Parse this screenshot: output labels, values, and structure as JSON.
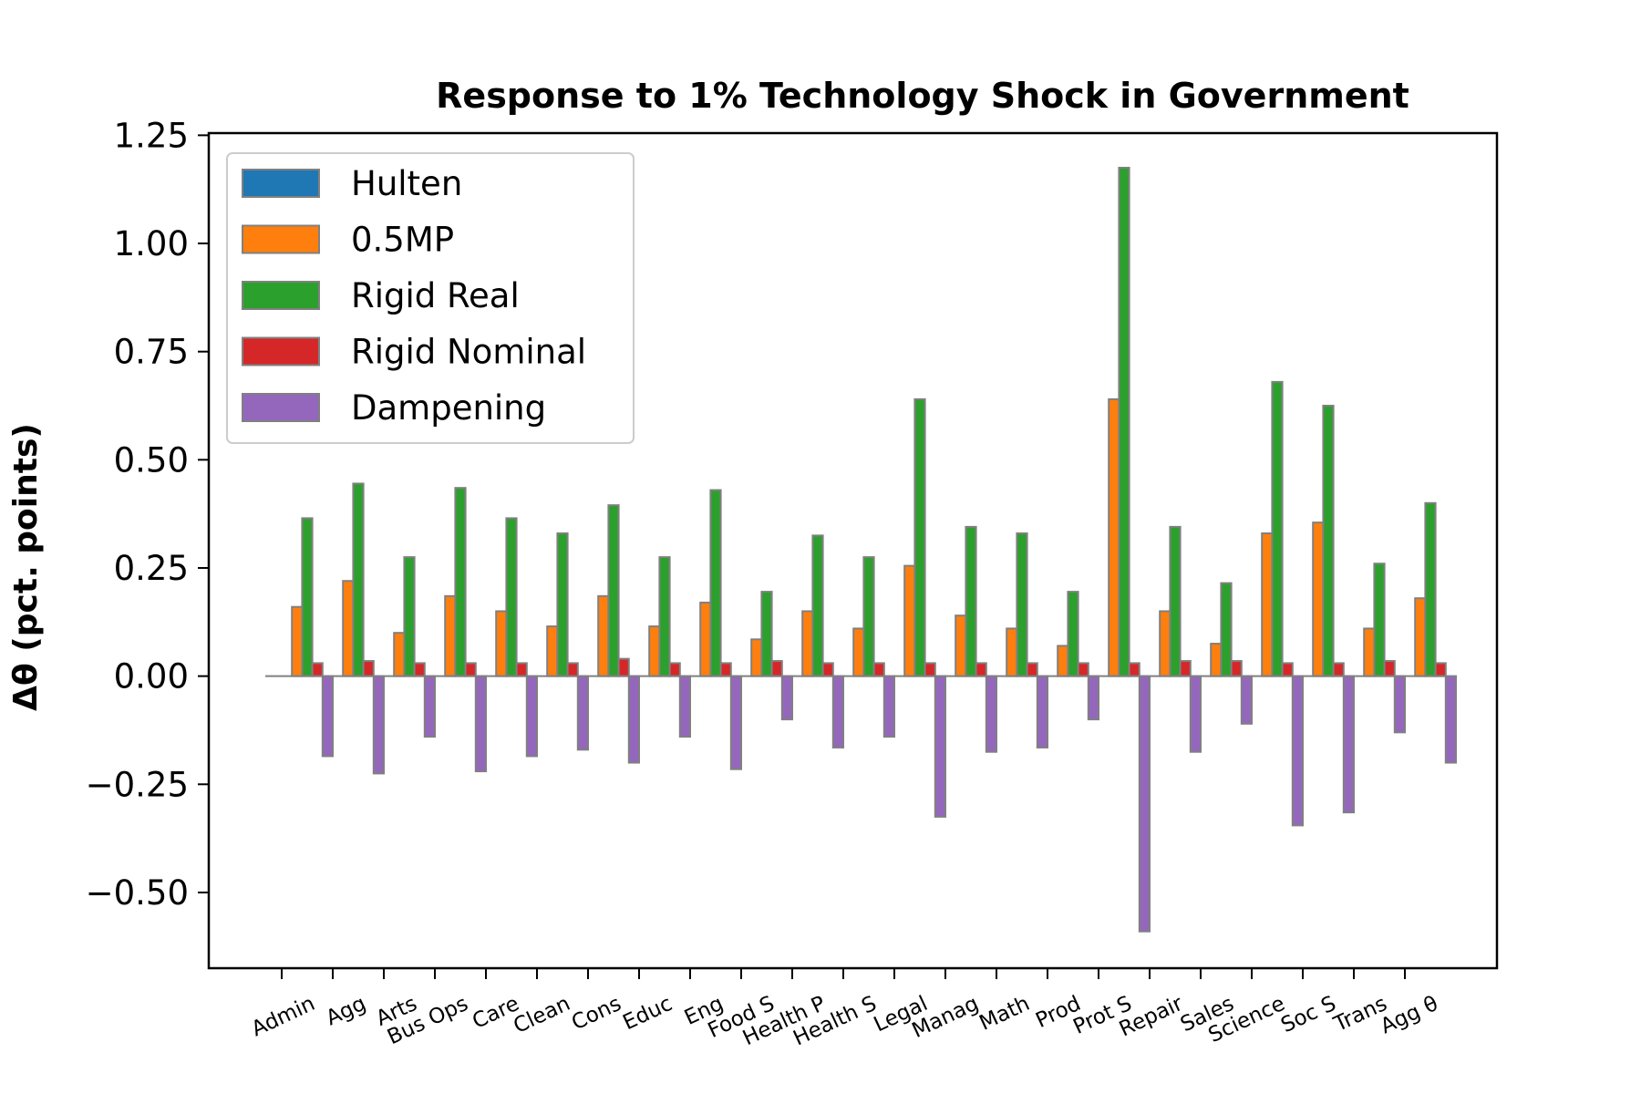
{
  "chart_data": {
    "type": "bar",
    "title": "Response to 1% Technology Shock in Government",
    "xlabel": "",
    "ylabel": "Δθ  (pct. points)",
    "ylim": [
      -0.675,
      1.255
    ],
    "yticks": [
      -0.5,
      -0.25,
      0.0,
      0.25,
      0.5,
      0.75,
      1.0,
      1.25
    ],
    "ytick_labels": [
      "−0.50",
      "−0.25",
      "0.00",
      "0.25",
      "0.50",
      "0.75",
      "1.00",
      "1.25"
    ],
    "grid": false,
    "legend_position": "top-left",
    "categories": [
      "Admin",
      "Agg",
      "Arts",
      "Bus Ops",
      "Care",
      "Clean",
      "Cons",
      "Educ",
      "Eng",
      "Food S",
      "Health P",
      "Health S",
      "Legal",
      "Manag",
      "Math",
      "Prod",
      "Prot S",
      "Repair",
      "Sales",
      "Science",
      "Soc S",
      "Trans",
      "Agg θ"
    ],
    "series": [
      {
        "name": "Hulten",
        "color": "#1f77b4",
        "values": [
          0,
          0,
          0,
          0,
          0,
          0,
          0,
          0,
          0,
          0,
          0,
          0,
          0,
          0,
          0,
          0,
          0,
          0,
          0,
          0,
          0,
          0,
          0
        ]
      },
      {
        "name": "0.5MP",
        "color": "#ff7f0e",
        "values": [
          0.16,
          0.22,
          0.1,
          0.185,
          0.15,
          0.115,
          0.185,
          0.115,
          0.17,
          0.085,
          0.15,
          0.11,
          0.255,
          0.14,
          0.11,
          0.07,
          0.64,
          0.15,
          0.075,
          0.33,
          0.355,
          0.11,
          0.18
        ]
      },
      {
        "name": "Rigid Real",
        "color": "#2ca02c",
        "values": [
          0.365,
          0.445,
          0.275,
          0.435,
          0.365,
          0.33,
          0.395,
          0.275,
          0.43,
          0.195,
          0.325,
          0.275,
          0.64,
          0.345,
          0.33,
          0.195,
          1.175,
          0.345,
          0.215,
          0.68,
          0.625,
          0.26,
          0.4
        ]
      },
      {
        "name": "Rigid Nominal",
        "color": "#d62728",
        "values": [
          0.03,
          0.035,
          0.03,
          0.03,
          0.03,
          0.03,
          0.04,
          0.03,
          0.03,
          0.035,
          0.03,
          0.03,
          0.03,
          0.03,
          0.03,
          0.03,
          0.03,
          0.035,
          0.035,
          0.03,
          0.03,
          0.035,
          0.03
        ]
      },
      {
        "name": "Dampening",
        "color": "#9467bd",
        "values": [
          -0.185,
          -0.225,
          -0.14,
          -0.22,
          -0.185,
          -0.17,
          -0.2,
          -0.14,
          -0.215,
          -0.1,
          -0.165,
          -0.14,
          -0.325,
          -0.175,
          -0.165,
          -0.1,
          -0.59,
          -0.175,
          -0.11,
          -0.345,
          -0.315,
          -0.13,
          -0.2
        ]
      }
    ]
  }
}
